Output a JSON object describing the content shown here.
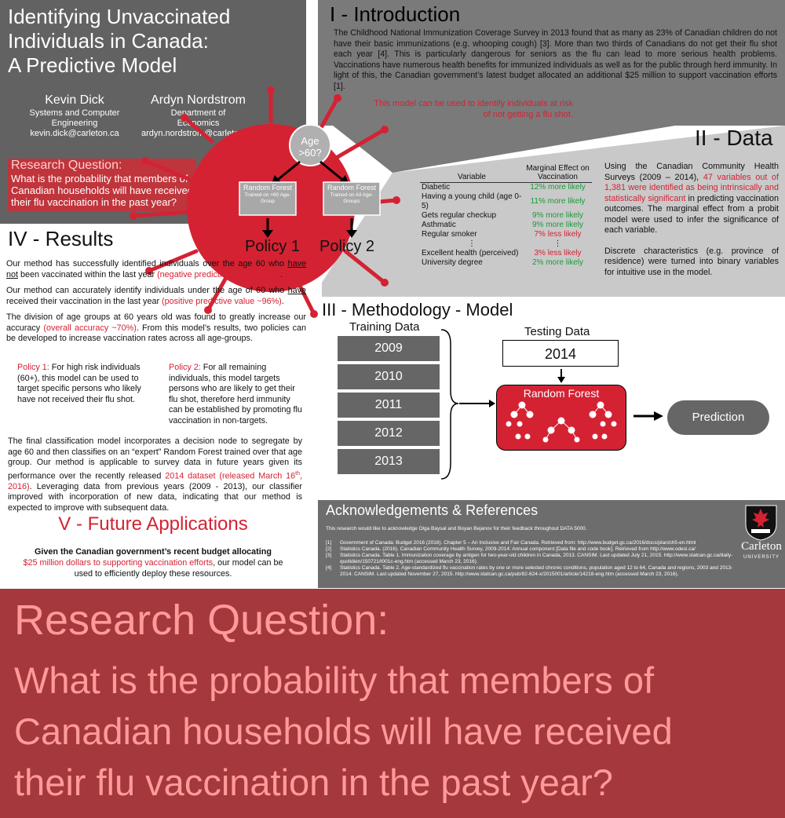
{
  "title": {
    "lines": [
      "Identifying Unvaccinated",
      "Individuals in Canada:",
      "A Predictive Model"
    ]
  },
  "authors": [
    {
      "name": "Kevin Dick",
      "dept1": "Systems and Computer",
      "dept2": "Engineering",
      "email": "kevin.dick@carleton.ca"
    },
    {
      "name": "Ardyn Nordstrom",
      "dept1": "Department of",
      "dept2": "Economics",
      "email": "ardyn.nordstrom@carleton.ca"
    }
  ],
  "research_question": {
    "heading": "Research Question:",
    "text": "What is the probability that members of Canadian households will have received their flu vaccination in the past year?",
    "lines": [
      "What is the probability that members of",
      "Canadian households will have received",
      "their flu vaccination in the past year?"
    ]
  },
  "introduction": {
    "title": "I - Introduction",
    "body": "The Childhood National Immunization Coverage Survey in 2013 found that as many as 23% of Canadian children do not have their basic immunizations (e.g. whooping cough) [3]. More than two thirds of Canadians do not get their flu shot each year [4]. This is particularly dangerous for seniors as the flu can lead to more serious health problems. Vaccinations have numerous health benefits for immunized individuals as well as for the public through herd immunity. In light of this, the Canadian government’s latest budget allocated an additional $25 million to support vaccination efforts [1].",
    "note": "This model can be used to identify individuals at risk of not getting a flu shot."
  },
  "virus": {
    "age_node_1": "Age",
    "age_node_2": ">60?",
    "rf1_title": "Random Forest",
    "rf1_sub": "Trained on +60 Age-Group",
    "rf2_title": "Random Forest",
    "rf2_sub": "Trained on All Age-Groups",
    "policy1": "Policy 1",
    "policy2": "Policy 2"
  },
  "data": {
    "title": "II - Data",
    "col_variable": "Variable",
    "col_effect": "Marginal Effect on Vaccination",
    "rows": [
      {
        "variable": "Diabetic",
        "effect": "12% more likely",
        "tone": "green"
      },
      {
        "variable": "Having a young child (age 0-5)",
        "effect": "11% more likely",
        "tone": "green"
      },
      {
        "variable": "Gets regular checkup",
        "effect": "9% more likely",
        "tone": "green"
      },
      {
        "variable": "Asthmatic",
        "effect": "9% more likely",
        "tone": "green"
      },
      {
        "variable": "Regular smoker",
        "effect": "7% less likely",
        "tone": "red"
      },
      {
        "variable": "⋮",
        "effect": "⋮",
        "tone": "none"
      },
      {
        "variable": "Excellent health (perceived)",
        "effect": "3% less likely",
        "tone": "red"
      },
      {
        "variable": "University degree",
        "effect": "2% more likely",
        "tone": "green"
      }
    ],
    "body_a": "Using the Canadian Community Health Surveys (2009 – 2014), ",
    "body_red": "47 variables out of 1,381 were identified as being intrinsically and statistically significant",
    "body_b": " in predicting vaccination outcomes. The marginal effect from a probit model were used to infer the significance of each variable.",
    "body2": "Discrete characteristics (e.g. province of residence) were turned into binary variables for intuitive use in the model."
  },
  "results": {
    "title": "IV - Results",
    "p1_a": "Our method has successfully identified individuals over the age 60 who ",
    "p1_u": "have not",
    "p1_b": " been vaccinated within the last year ",
    "p1_red": "(negative predictive value ~80%)",
    "p1_c": ".",
    "p2_a": "Our method can accurately identify individuals under the age of 60 who ",
    "p2_u": "have",
    "p2_b": " received their vaccination in the last year ",
    "p2_red": "(positive predictive value ~96%)",
    "p2_c": ".",
    "p3_a": "The division of age groups at 60 years old was found to greatly increase our accuracy ",
    "p3_red": "(overall accuracy ~70%)",
    "p3_b": ". From this model’s results, two policies can be developed to increase vaccination rates across all age-groups.",
    "pol1_label": "Policy 1:",
    "pol1_text": " For high risk individuals (60+), this model can be used to target specific persons who likely have not received their flu shot.",
    "pol2_label": "Policy 2:",
    "pol2_text": " For all remaining individuals, this model targets persons who are likely to get their flu shot, therefore herd immunity can be established by promoting flu vaccination in non-targets.",
    "final_a": "The final classification model incorporates a decision node to segregate by age 60 and then classifies on an “expert” Random Forest trained over that age group. Our method is applicable to survey data in future years given its performance over the recently released ",
    "final_red": "2014 dataset (released March 16",
    "final_sup": "th",
    "final_red2": ", 2016)",
    "final_b": ". Leveraging data from previous years (2009 - 2013), our classifier improved with incorporation of new data, indicating that our method is expected to improve with subsequent data."
  },
  "future": {
    "title": "V - Future Applications",
    "bold": "Given the Canadian government’s recent budget allocating",
    "red": "$25 million dollars to supporting vaccination efforts",
    "rest": ", our model can be used  to efficiently deploy these resources."
  },
  "methodology": {
    "title": "III - Methodology - Model",
    "training_label": "Training Data",
    "years": [
      "2009",
      "2010",
      "2011",
      "2012",
      "2013"
    ],
    "testing_label": "Testing Data",
    "test_year": "2014",
    "rf_label": "Random Forest",
    "prediction": "Prediction"
  },
  "acknowledgements": {
    "title": "Acknowledgements & References",
    "text": "This research would like to acknowledge Olga Baysal and Boyan Bejanov for their feedback throughout DATA 5000.",
    "refs": [
      {
        "n": "[1]",
        "t": "Government of Canada: Budget 2016 (2016). Chapter 5 – An Inclusive and Fair Canada. Retrieved from: http://www.budget.gc.ca/2016/docs/plan/ch5-en.html"
      },
      {
        "n": "[2]",
        "t": "Statistics Canada. (2016). Canadian Community Health Survey, 2009-2014: Annual component [Data file and code book]. Retrieved from http://www.odesi.ca/"
      },
      {
        "n": "[3]",
        "t": "Statistics Canada. Table 1. Immunization coverage by antigen for two-year-old children in Canada, 2013. CANSIM. Last updated July 21, 2015. http://www.statcan.gc.ca/daily-quotidien/150721/t001c-eng.htm (accessed March 23, 2016)."
      },
      {
        "n": "[4]",
        "t": "Statistics Canada. Table 2. Age-standardized flu vaccination rates by one or more selected chronic conditions, population aged 12 to 64, Canada and regions, 2003 and 2013-2014. CANSIM. Last updated November 27, 2015. http://www.statcan.gc.ca/pub/82-624-x/2015001/article/14218-eng.htm (accessed March 23, 2016)."
      }
    ]
  },
  "logo": {
    "name": "Carleton",
    "sub": "UNIVERSITY"
  },
  "colors": {
    "accent": "#d42233",
    "panel": "#666666",
    "banner": "#a5383c"
  }
}
